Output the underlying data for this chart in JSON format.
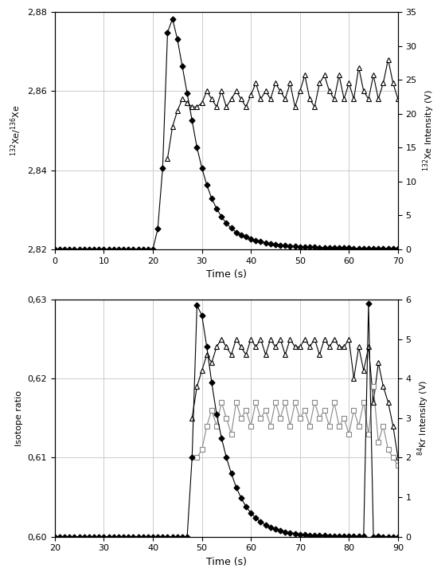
{
  "top": {
    "xlabel": "Time (s)",
    "ylabel_left": "$^{132}$Xe/$^{136}$Xe",
    "ylabel_right": "$^{132}$Xe Intensity (V)",
    "xlim": [
      0,
      70
    ],
    "ylim_left": [
      2.82,
      2.88
    ],
    "ylim_right": [
      0,
      35
    ],
    "yticks_left": [
      2.82,
      2.84,
      2.86,
      2.88
    ],
    "yticks_right": [
      0,
      5,
      10,
      15,
      20,
      25,
      30,
      35
    ],
    "xticks": [
      0,
      10,
      20,
      30,
      40,
      50,
      60,
      70
    ],
    "diamond_t": [
      0,
      1,
      2,
      3,
      4,
      5,
      6,
      7,
      8,
      9,
      10,
      11,
      12,
      13,
      14,
      15,
      16,
      17,
      18,
      19,
      20,
      21,
      22,
      23,
      24,
      25,
      26,
      27,
      28,
      29,
      30,
      31,
      32,
      33,
      34,
      35,
      36,
      37,
      38,
      39,
      40,
      41,
      42,
      43,
      44,
      45,
      46,
      47,
      48,
      49,
      50,
      51,
      52,
      53,
      54,
      55,
      56,
      57,
      58,
      59,
      60,
      61,
      62,
      63,
      64,
      65,
      66,
      67,
      68,
      69,
      70
    ],
    "diamond_v": [
      0,
      0,
      0,
      0,
      0,
      0,
      0,
      0,
      0,
      0,
      0,
      0,
      0,
      0,
      0,
      0,
      0,
      0,
      0,
      0,
      0,
      3,
      12,
      32,
      34,
      31,
      27,
      23,
      19,
      15,
      12,
      9.5,
      7.5,
      6.0,
      4.8,
      3.8,
      3.1,
      2.5,
      2.1,
      1.8,
      1.5,
      1.3,
      1.1,
      0.95,
      0.82,
      0.71,
      0.62,
      0.55,
      0.48,
      0.42,
      0.38,
      0.34,
      0.31,
      0.28,
      0.26,
      0.24,
      0.22,
      0.2,
      0.18,
      0.17,
      0.16,
      0.15,
      0.14,
      0.13,
      0.12,
      0.11,
      0.1,
      0.09,
      0.09,
      0.08,
      0.07
    ],
    "triangle_t": [
      23,
      24,
      25,
      26,
      27,
      28,
      29,
      30,
      31,
      32,
      33,
      34,
      35,
      36,
      37,
      38,
      39,
      40,
      41,
      42,
      43,
      44,
      45,
      46,
      47,
      48,
      49,
      50,
      51,
      52,
      53,
      54,
      55,
      56,
      57,
      58,
      59,
      60,
      61,
      62,
      63,
      64,
      65,
      66,
      67,
      68,
      69,
      70
    ],
    "triangle_v": [
      2.843,
      2.851,
      2.855,
      2.858,
      2.857,
      2.856,
      2.856,
      2.857,
      2.86,
      2.858,
      2.856,
      2.86,
      2.856,
      2.858,
      2.86,
      2.858,
      2.856,
      2.859,
      2.862,
      2.858,
      2.86,
      2.858,
      2.862,
      2.86,
      2.858,
      2.862,
      2.856,
      2.86,
      2.864,
      2.858,
      2.856,
      2.862,
      2.864,
      2.86,
      2.858,
      2.864,
      2.858,
      2.862,
      2.858,
      2.866,
      2.86,
      2.858,
      2.864,
      2.858,
      2.862,
      2.868,
      2.862,
      2.858
    ]
  },
  "bottom": {
    "xlabel": "Time (s)",
    "ylabel_left": "Isotope ratio",
    "ylabel_right": "$^{84}$Kr Intensity (V)",
    "xlim": [
      20,
      90
    ],
    "ylim_left": [
      0.6,
      0.63
    ],
    "ylim_right": [
      0,
      6
    ],
    "yticks_left": [
      0.6,
      0.61,
      0.62,
      0.63
    ],
    "yticks_right": [
      0,
      1,
      2,
      3,
      4,
      5,
      6
    ],
    "xticks": [
      20,
      30,
      40,
      50,
      60,
      70,
      80,
      90
    ],
    "diamond_t": [
      20,
      21,
      22,
      23,
      24,
      25,
      26,
      27,
      28,
      29,
      30,
      31,
      32,
      33,
      34,
      35,
      36,
      37,
      38,
      39,
      40,
      41,
      42,
      43,
      44,
      45,
      46,
      47,
      48,
      49,
      50,
      51,
      52,
      53,
      54,
      55,
      56,
      57,
      58,
      59,
      60,
      61,
      62,
      63,
      64,
      65,
      66,
      67,
      68,
      69,
      70,
      71,
      72,
      73,
      74,
      75,
      76,
      77,
      78,
      79,
      80,
      81,
      82,
      83,
      84,
      85,
      86,
      87,
      88,
      89,
      90
    ],
    "diamond_v": [
      0,
      0,
      0,
      0,
      0,
      0,
      0,
      0,
      0,
      0,
      0,
      0,
      0,
      0,
      0,
      0,
      0,
      0,
      0,
      0,
      0,
      0,
      0,
      0,
      0,
      0,
      0,
      0,
      2.0,
      5.85,
      5.6,
      4.8,
      3.9,
      3.1,
      2.5,
      2.0,
      1.6,
      1.25,
      0.98,
      0.76,
      0.6,
      0.47,
      0.37,
      0.3,
      0.23,
      0.19,
      0.15,
      0.12,
      0.1,
      0.08,
      0.06,
      0.05,
      0.04,
      0.04,
      0.03,
      0.03,
      0.02,
      0.02,
      0.02,
      0.01,
      0.01,
      0.01,
      0.01,
      0.01,
      5.9,
      0.0,
      0.01,
      0.0,
      0.0,
      0.0,
      0.0
    ],
    "triangle_t": [
      48,
      49,
      50,
      51,
      52,
      53,
      54,
      55,
      56,
      57,
      58,
      59,
      60,
      61,
      62,
      63,
      64,
      65,
      66,
      67,
      68,
      69,
      70,
      71,
      72,
      73,
      74,
      75,
      76,
      77,
      78,
      79,
      80,
      81,
      82,
      83,
      84,
      85,
      86,
      87,
      88,
      89,
      90
    ],
    "triangle_v": [
      0.615,
      0.619,
      0.621,
      0.623,
      0.622,
      0.624,
      0.625,
      0.624,
      0.623,
      0.625,
      0.624,
      0.623,
      0.625,
      0.624,
      0.625,
      0.623,
      0.625,
      0.624,
      0.625,
      0.623,
      0.625,
      0.624,
      0.624,
      0.625,
      0.624,
      0.625,
      0.623,
      0.625,
      0.624,
      0.625,
      0.624,
      0.624,
      0.625,
      0.62,
      0.624,
      0.621,
      0.624,
      0.617,
      0.622,
      0.619,
      0.617,
      0.614,
      0.61
    ],
    "square_t": [
      49,
      50,
      51,
      52,
      53,
      54,
      55,
      56,
      57,
      58,
      59,
      60,
      61,
      62,
      63,
      64,
      65,
      66,
      67,
      68,
      69,
      70,
      71,
      72,
      73,
      74,
      75,
      76,
      77,
      78,
      79,
      80,
      81,
      82,
      83,
      84,
      85,
      86,
      87,
      88,
      89,
      90
    ],
    "square_v": [
      0.61,
      0.611,
      0.614,
      0.616,
      0.614,
      0.617,
      0.615,
      0.613,
      0.617,
      0.615,
      0.616,
      0.614,
      0.617,
      0.615,
      0.616,
      0.614,
      0.617,
      0.615,
      0.617,
      0.614,
      0.617,
      0.615,
      0.616,
      0.614,
      0.617,
      0.615,
      0.616,
      0.614,
      0.617,
      0.614,
      0.615,
      0.613,
      0.616,
      0.614,
      0.617,
      0.613,
      0.619,
      0.612,
      0.614,
      0.611,
      0.61,
      0.609
    ]
  },
  "background_color": "#ffffff",
  "line_color": "#000000",
  "marker_diamond_color": "#000000",
  "marker_triangle_color": "#000000",
  "marker_square_color": "#aaaaaa",
  "grid_color": "#cccccc"
}
